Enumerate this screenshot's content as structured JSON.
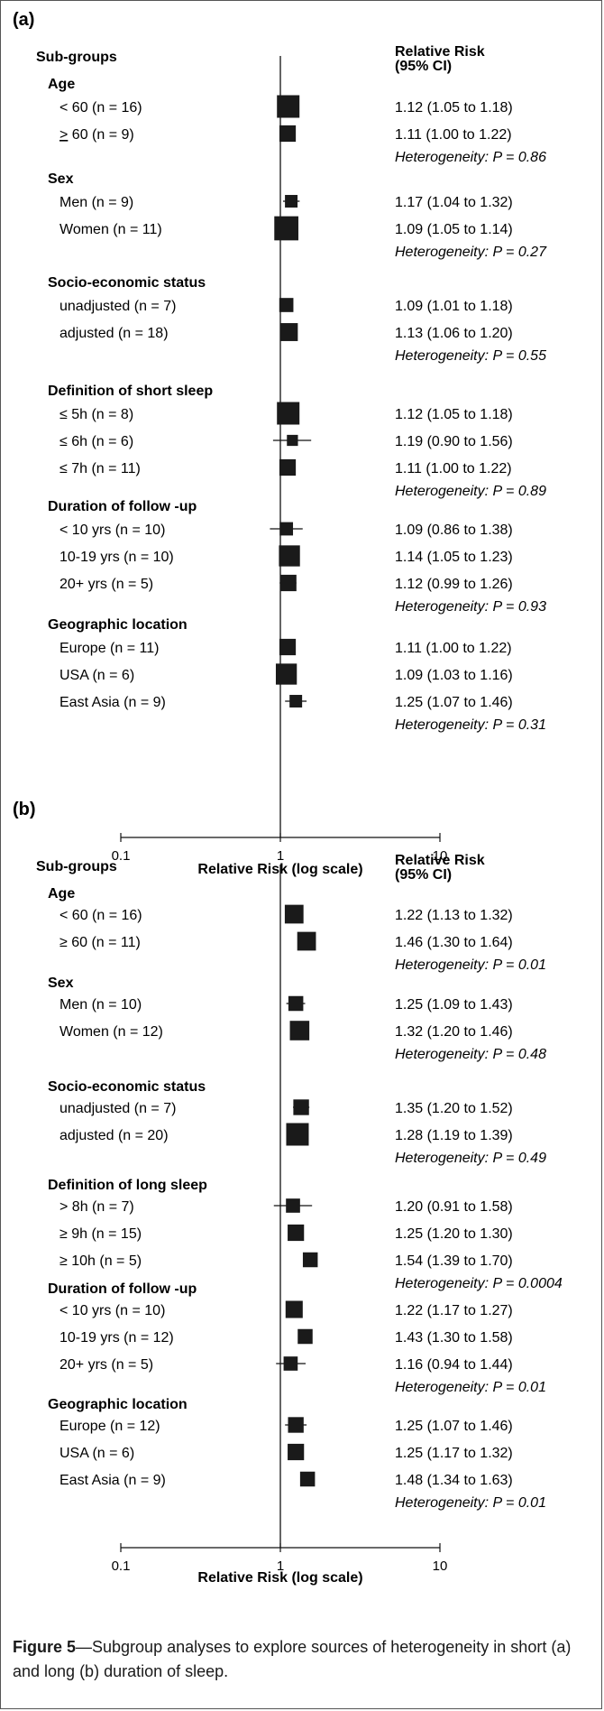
{
  "chart_data": [
    {
      "type": "forest",
      "panel": "(a)",
      "header_left": "Sub-groups",
      "header_right": [
        "Relative Risk",
        "(95% CI)"
      ],
      "xlabel": "Relative Risk (log scale)",
      "xscale": "log",
      "xlim": [
        0.1,
        10
      ],
      "xticks": [
        {
          "v": 0.1,
          "label": "0.1"
        },
        {
          "v": 1,
          "label": "1"
        },
        {
          "v": 10,
          "label": "10"
        }
      ],
      "groups": [
        {
          "title": "Age",
          "heterogeneity": "Heterogeneity: P = 0.86",
          "rows": [
            {
              "label": "< 60 (n = 16)",
              "est": 1.12,
              "lo": 1.05,
              "hi": 1.18,
              "text": "1.12 (1.05 to 1.18)",
              "box": 1.0
            },
            {
              "label": "> 60 (n = 9)",
              "underline_first": true,
              "est": 1.11,
              "lo": 1.0,
              "hi": 1.22,
              "text": "1.11 (1.00 to 1.22)",
              "box": 0.6
            }
          ]
        },
        {
          "title": "Sex",
          "heterogeneity": "Heterogeneity: P = 0.27",
          "rows": [
            {
              "label": "Men (n = 9)",
              "est": 1.17,
              "lo": 1.04,
              "hi": 1.32,
              "text": "1.17 (1.04 to 1.32)",
              "box": 0.35
            },
            {
              "label": "Women (n = 11)",
              "est": 1.09,
              "lo": 1.05,
              "hi": 1.14,
              "text": "1.09 (1.05 to 1.14)",
              "box": 1.1
            }
          ]
        },
        {
          "title": "Socio-economic status",
          "heterogeneity": "Heterogeneity: P = 0.55",
          "rows": [
            {
              "label": "unadjusted (n = 7)",
              "est": 1.09,
              "lo": 1.01,
              "hi": 1.18,
              "text": "1.09 (1.01 to 1.18)",
              "box": 0.45
            },
            {
              "label": "adjusted (n = 18)",
              "est": 1.13,
              "lo": 1.06,
              "hi": 1.2,
              "text": "1.13 (1.06 to 1.20)",
              "box": 0.7
            }
          ]
        },
        {
          "title": "Definition of short sleep",
          "heterogeneity": "Heterogeneity: P = 0.89",
          "rows": [
            {
              "label": "≤ 5h (n = 8)",
              "est": 1.12,
              "lo": 1.05,
              "hi": 1.18,
              "text": "1.12 (1.05 to 1.18)",
              "box": 1.0
            },
            {
              "label": "≤ 6h (n = 6)",
              "est": 1.19,
              "lo": 0.9,
              "hi": 1.56,
              "text": "1.19 (0.90 to 1.56)",
              "box": 0.25
            },
            {
              "label": "≤ 7h (n = 11)",
              "est": 1.11,
              "lo": 1.0,
              "hi": 1.22,
              "text": "1.11 (1.00 to 1.22)",
              "box": 0.6
            }
          ]
        },
        {
          "title": "Duration of follow -up",
          "heterogeneity": "Heterogeneity: P = 0.93",
          "rows": [
            {
              "label": "< 10 yrs (n = 10)",
              "est": 1.09,
              "lo": 0.86,
              "hi": 1.38,
              "text": "1.09 (0.86 to 1.38)",
              "box": 0.4
            },
            {
              "label": "10-19 yrs (n = 10)",
              "est": 1.14,
              "lo": 1.05,
              "hi": 1.23,
              "text": "1.14 (1.05 to 1.23)",
              "box": 0.9
            },
            {
              "label": "20+ yrs (n = 5)",
              "est": 1.12,
              "lo": 0.99,
              "hi": 1.26,
              "text": "1.12 (0.99 to 1.26)",
              "box": 0.6
            }
          ]
        },
        {
          "title": "Geographic location",
          "heterogeneity": "Heterogeneity: P = 0.31",
          "rows": [
            {
              "label": "Europe (n = 11)",
              "est": 1.11,
              "lo": 1.0,
              "hi": 1.22,
              "text": "1.11 (1.00 to 1.22)",
              "box": 0.6
            },
            {
              "label": "USA (n = 6)",
              "est": 1.09,
              "lo": 1.03,
              "hi": 1.16,
              "text": "1.09 (1.03 to 1.16)",
              "box": 0.9
            },
            {
              "label": "East Asia (n = 9)",
              "est": 1.25,
              "lo": 1.07,
              "hi": 1.46,
              "text": "1.25 (1.07 to 1.46)",
              "box": 0.35
            }
          ]
        }
      ]
    },
    {
      "type": "forest",
      "panel": "(b)",
      "header_left": "Sub-groups",
      "header_right": [
        "Relative Risk",
        "(95% CI)"
      ],
      "xlabel": "Relative Risk (log scale)",
      "xscale": "log",
      "xlim": [
        0.1,
        10
      ],
      "xticks": [
        {
          "v": 0.1,
          "label": "0.1"
        },
        {
          "v": 1,
          "label": "1"
        },
        {
          "v": 10,
          "label": "10"
        }
      ],
      "groups": [
        {
          "title": "Age",
          "heterogeneity": "Heterogeneity: P = 0.01",
          "rows": [
            {
              "label": "< 60 (n = 16)",
              "est": 1.22,
              "lo": 1.13,
              "hi": 1.32,
              "text": "1.22 (1.13 to 1.32)",
              "box": 0.75
            },
            {
              "label": "≥ 60 (n = 11)",
              "est": 1.46,
              "lo": 1.3,
              "hi": 1.64,
              "text": "1.46 (1.30 to 1.64)",
              "box": 0.75
            }
          ]
        },
        {
          "title": "Sex",
          "heterogeneity": "Heterogeneity: P = 0.48",
          "rows": [
            {
              "label": "Men (n = 10)",
              "est": 1.25,
              "lo": 1.09,
              "hi": 1.43,
              "text": "1.25 (1.09 to 1.43)",
              "box": 0.5
            },
            {
              "label": "Women (n = 12)",
              "est": 1.32,
              "lo": 1.2,
              "hi": 1.46,
              "text": "1.32 (1.20 to 1.46)",
              "box": 0.8
            }
          ]
        },
        {
          "title": "Socio-economic status",
          "heterogeneity": "Heterogeneity: P = 0.49",
          "rows": [
            {
              "label": "unadjusted (n = 7)",
              "est": 1.35,
              "lo": 1.2,
              "hi": 1.52,
              "text": "1.35 (1.20 to 1.52)",
              "box": 0.55
            },
            {
              "label": "adjusted (n = 20)",
              "est": 1.28,
              "lo": 1.19,
              "hi": 1.39,
              "text": "1.28 (1.19 to 1.39)",
              "box": 1.0
            }
          ]
        },
        {
          "title": "Definition of long sleep",
          "heterogeneity": "Heterogeneity: P = 0.0004",
          "rows": [
            {
              "label": "> 8h (n = 7)",
              "est": 1.2,
              "lo": 0.91,
              "hi": 1.58,
              "text": "1.20 (0.91 to 1.58)",
              "box": 0.45
            },
            {
              "label": "≥ 9h (n = 15)",
              "est": 1.25,
              "lo": 1.2,
              "hi": 1.3,
              "text": "1.25 (1.20 to 1.30)",
              "box": 0.6
            },
            {
              "label": "≥ 10h (n = 5)",
              "est": 1.54,
              "lo": 1.39,
              "hi": 1.7,
              "text": "1.54 (1.39 to 1.70)",
              "box": 0.5
            }
          ]
        },
        {
          "title": "Duration of follow  -up",
          "heterogeneity": "Heterogeneity: P = 0.01",
          "rows": [
            {
              "label": "< 10 yrs (n = 10)",
              "est": 1.22,
              "lo": 1.17,
              "hi": 1.27,
              "text": "1.22 (1.17 to 1.27)",
              "box": 0.65
            },
            {
              "label": "10-19 yrs (n = 12)",
              "est": 1.43,
              "lo": 1.3,
              "hi": 1.58,
              "text": "1.43 (1.30 to 1.58)",
              "box": 0.5
            },
            {
              "label": "20+ yrs (n = 5)",
              "est": 1.16,
              "lo": 0.94,
              "hi": 1.44,
              "text": "1.16 (0.94 to 1.44)",
              "box": 0.45
            }
          ]
        },
        {
          "title": "Geographic location",
          "heterogeneity": "Heterogeneity: P = 0.01",
          "rows": [
            {
              "label": "Europe (n = 12)",
              "est": 1.25,
              "lo": 1.07,
              "hi": 1.46,
              "text": "1.25 (1.07 to 1.46)",
              "box": 0.55
            },
            {
              "label": "USA (n = 6)",
              "est": 1.25,
              "lo": 1.17,
              "hi": 1.32,
              "text": "1.25 (1.17 to 1.32)",
              "box": 0.6
            },
            {
              "label": "East Asia (n = 9)",
              "est": 1.48,
              "lo": 1.34,
              "hi": 1.63,
              "text": "1.48 (1.34 to 1.63)",
              "box": 0.5
            }
          ]
        }
      ]
    }
  ],
  "caption": {
    "bold": "Figure 5",
    "text": "—Subgroup analyses to explore sources of heterogeneity in short (a) and long (b) duration of sleep."
  }
}
